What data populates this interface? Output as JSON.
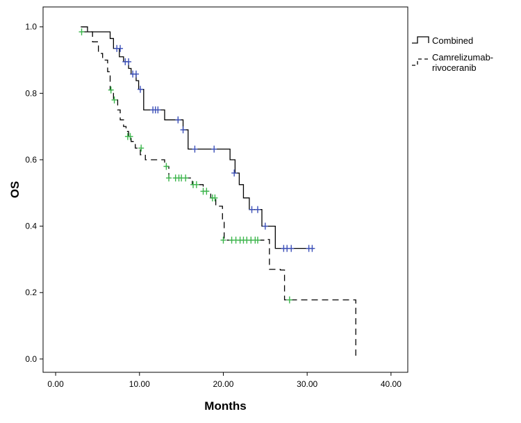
{
  "chart_data": {
    "type": "line",
    "subtype": "kaplan-meier",
    "title": "",
    "xlabel": "Months",
    "ylabel": "OS",
    "xlim": [
      -1.5,
      42
    ],
    "ylim": [
      -0.04,
      1.06
    ],
    "xticks": [
      0,
      10,
      20,
      30,
      40
    ],
    "xtick_labels": [
      "0.00",
      "10.00",
      "20.00",
      "30.00",
      "40.00"
    ],
    "yticks": [
      0,
      0.2,
      0.4,
      0.6,
      0.8,
      1.0
    ],
    "ytick_labels": [
      "0.0",
      "0.2",
      "0.4",
      "0.6",
      "0.8",
      "1.0"
    ],
    "grid": false,
    "legend_position": "top-right",
    "series": [
      {
        "name": "Combined",
        "legend_label": "Combined",
        "line_style": "solid",
        "line_color": "#000000",
        "censor_color": "#3b4fb8",
        "steps": [
          [
            3.0,
            1.0
          ],
          [
            3.8,
            0.985
          ],
          [
            6.5,
            0.965
          ],
          [
            6.9,
            0.935
          ],
          [
            7.6,
            0.91
          ],
          [
            8.1,
            0.895
          ],
          [
            8.7,
            0.875
          ],
          [
            9.0,
            0.858
          ],
          [
            9.6,
            0.838
          ],
          [
            9.9,
            0.812
          ],
          [
            10.5,
            0.75
          ],
          [
            13.0,
            0.72
          ],
          [
            15.2,
            0.69
          ],
          [
            15.8,
            0.632
          ],
          [
            20.8,
            0.6
          ],
          [
            21.4,
            0.56
          ],
          [
            21.9,
            0.525
          ],
          [
            22.4,
            0.485
          ],
          [
            23.1,
            0.45
          ],
          [
            24.6,
            0.4
          ],
          [
            26.2,
            0.333
          ],
          [
            30.8,
            0.333
          ]
        ],
        "censored": [
          [
            7.3,
            0.935
          ],
          [
            7.7,
            0.935
          ],
          [
            8.3,
            0.895
          ],
          [
            8.7,
            0.895
          ],
          [
            9.2,
            0.858
          ],
          [
            9.6,
            0.858
          ],
          [
            10.1,
            0.812
          ],
          [
            11.6,
            0.75
          ],
          [
            11.9,
            0.75
          ],
          [
            12.2,
            0.75
          ],
          [
            14.6,
            0.72
          ],
          [
            15.2,
            0.69
          ],
          [
            16.6,
            0.632
          ],
          [
            18.9,
            0.632
          ],
          [
            21.3,
            0.56
          ],
          [
            23.4,
            0.45
          ],
          [
            24.1,
            0.45
          ],
          [
            25.0,
            0.4
          ],
          [
            27.2,
            0.333
          ],
          [
            27.6,
            0.333
          ],
          [
            28.1,
            0.333
          ],
          [
            30.2,
            0.333
          ],
          [
            30.6,
            0.333
          ]
        ]
      },
      {
        "name": "Camrelizumab-rivoceranib",
        "legend_label": [
          "Camrelizumab-",
          "rivoceranib"
        ],
        "line_style": "dashed",
        "line_color": "#000000",
        "censor_color": "#3ab54a",
        "steps": [
          [
            3.0,
            0.985
          ],
          [
            4.4,
            0.955
          ],
          [
            5.1,
            0.92
          ],
          [
            5.6,
            0.9
          ],
          [
            6.2,
            0.865
          ],
          [
            6.5,
            0.81
          ],
          [
            6.9,
            0.78
          ],
          [
            7.4,
            0.75
          ],
          [
            7.7,
            0.72
          ],
          [
            8.1,
            0.7
          ],
          [
            8.4,
            0.685
          ],
          [
            8.7,
            0.67
          ],
          [
            9.0,
            0.655
          ],
          [
            9.5,
            0.635
          ],
          [
            10.1,
            0.615
          ],
          [
            10.7,
            0.6
          ],
          [
            13.0,
            0.58
          ],
          [
            13.5,
            0.545
          ],
          [
            16.3,
            0.525
          ],
          [
            17.6,
            0.505
          ],
          [
            18.5,
            0.485
          ],
          [
            19.1,
            0.46
          ],
          [
            19.9,
            0.42
          ],
          [
            20.1,
            0.358
          ],
          [
            25.2,
            0.36
          ],
          [
            25.5,
            0.27
          ],
          [
            26.8,
            0.268
          ],
          [
            27.3,
            0.178
          ],
          [
            35.8,
            0.178
          ],
          [
            35.8,
            0.0
          ]
        ],
        "censored": [
          [
            3.1,
            0.985
          ],
          [
            6.6,
            0.81
          ],
          [
            7.0,
            0.78
          ],
          [
            8.6,
            0.67
          ],
          [
            8.9,
            0.67
          ],
          [
            10.2,
            0.635
          ],
          [
            13.2,
            0.58
          ],
          [
            13.5,
            0.545
          ],
          [
            14.3,
            0.545
          ],
          [
            14.7,
            0.545
          ],
          [
            15.0,
            0.545
          ],
          [
            15.5,
            0.545
          ],
          [
            16.4,
            0.525
          ],
          [
            16.8,
            0.525
          ],
          [
            17.6,
            0.505
          ],
          [
            18.0,
            0.505
          ],
          [
            18.7,
            0.485
          ],
          [
            19.0,
            0.485
          ],
          [
            20.0,
            0.358
          ],
          [
            21.0,
            0.358
          ],
          [
            21.5,
            0.358
          ],
          [
            22.0,
            0.358
          ],
          [
            22.4,
            0.358
          ],
          [
            22.8,
            0.358
          ],
          [
            23.3,
            0.358
          ],
          [
            23.8,
            0.358
          ],
          [
            24.1,
            0.358
          ],
          [
            27.9,
            0.178
          ]
        ]
      }
    ]
  }
}
